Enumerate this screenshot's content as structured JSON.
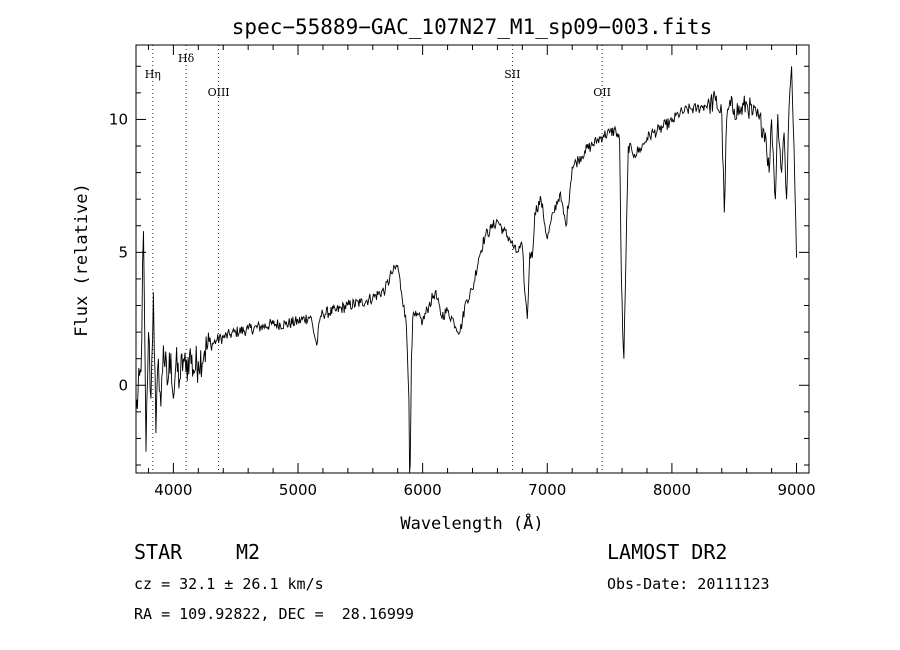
{
  "chart_data": {
    "type": "line",
    "title": "spec−55889−GAC_107N27_M1_sp09−003.fits",
    "xlabel": "Wavelength (Å)",
    "ylabel": "Flux (relative)",
    "xlim": [
      3700,
      9100
    ],
    "ylim": [
      -3.3,
      12.8
    ],
    "xticks": [
      4000,
      5000,
      6000,
      7000,
      8000,
      9000
    ],
    "yticks": [
      0,
      5,
      10
    ],
    "grid": false,
    "lines": [
      {
        "label": "Hη",
        "x": 3835
      },
      {
        "label": "Hδ",
        "x": 4102
      },
      {
        "label": "OIII",
        "x": 4363
      },
      {
        "label": "SII",
        "x": 6720
      },
      {
        "label": "OII",
        "x": 7440
      }
    ],
    "series": [
      {
        "x": [
          3700,
          3740,
          3760,
          3780,
          3800,
          3820,
          3840,
          3860,
          3880,
          3900,
          3920,
          3950,
          3980,
          4000,
          4020,
          4050,
          4080,
          4100,
          4130,
          4160,
          4200,
          4250,
          4300,
          4350,
          4400,
          4450,
          4500,
          4600,
          4700,
          4800,
          4900,
          5000,
          5100,
          5150,
          5180,
          5200,
          5300,
          5400,
          5500,
          5600,
          5700,
          5750,
          5800,
          5830,
          5850,
          5870,
          5890,
          5895,
          5900,
          5910,
          5920,
          5950,
          6000,
          6050,
          6100,
          6150,
          6200,
          6250,
          6300,
          6350,
          6400,
          6450,
          6500,
          6550,
          6600,
          6650,
          6700,
          6750,
          6800,
          6820,
          6840,
          6860,
          6880,
          6900,
          6950,
          7000,
          7050,
          7100,
          7150,
          7200,
          7250,
          7300,
          7350,
          7400,
          7450,
          7500,
          7550,
          7580,
          7595,
          7605,
          7615,
          7630,
          7650,
          7680,
          7700,
          7750,
          7800,
          7850,
          7900,
          7950,
          8000,
          8050,
          8100,
          8150,
          8200,
          8250,
          8300,
          8350,
          8400,
          8420,
          8440,
          8460,
          8500,
          8550,
          8600,
          8650,
          8700,
          8750,
          8780,
          8800,
          8830,
          8850,
          8880,
          8900,
          8920,
          8940,
          8960,
          8980,
          9000
        ],
        "y": [
          -1.0,
          0.5,
          5.8,
          -2.5,
          2.0,
          -0.5,
          3.5,
          -1.8,
          1.0,
          -0.8,
          1.5,
          0.0,
          1.2,
          -0.5,
          0.8,
          0.2,
          1.0,
          0.5,
          1.2,
          0.6,
          0.9,
          1.3,
          1.5,
          1.7,
          1.8,
          1.9,
          2.0,
          2.1,
          2.2,
          2.3,
          2.3,
          2.4,
          2.6,
          1.5,
          2.6,
          2.7,
          2.8,
          3.0,
          3.1,
          3.3,
          3.6,
          4.2,
          4.5,
          3.5,
          3.0,
          2.2,
          -0.5,
          -3.3,
          -3.0,
          1.0,
          2.5,
          2.6,
          2.4,
          3.0,
          3.5,
          2.6,
          2.8,
          2.4,
          2.0,
          3.2,
          3.6,
          4.8,
          5.6,
          5.9,
          6.2,
          5.8,
          5.5,
          5.0,
          5.2,
          3.5,
          2.5,
          5.0,
          4.8,
          6.5,
          7.0,
          5.5,
          6.5,
          7.2,
          6.0,
          8.2,
          8.5,
          8.8,
          9.0,
          9.2,
          9.4,
          9.5,
          9.6,
          9.2,
          4.0,
          2.0,
          1.0,
          4.5,
          9.0,
          8.8,
          8.7,
          8.9,
          9.3,
          9.5,
          9.6,
          9.8,
          9.9,
          10.2,
          10.3,
          10.4,
          10.4,
          10.5,
          10.6,
          10.7,
          10.2,
          6.5,
          10.0,
          10.5,
          10.4,
          10.3,
          10.6,
          10.2,
          10.0,
          9.5,
          8.0,
          10.0,
          7.0,
          10.2,
          8.0,
          9.5,
          7.0,
          10.5,
          12.0,
          9.0,
          4.8
        ]
      }
    ]
  },
  "info": {
    "object_class": "STAR",
    "subclass": "M2",
    "redshift": "cz = 32.1 ± 26.1 km/s",
    "coordinates": "RA = 109.92822, DEC =  28.16999",
    "survey": "LAMOST DR2",
    "obs_date": "Obs-Date: 20111123"
  }
}
